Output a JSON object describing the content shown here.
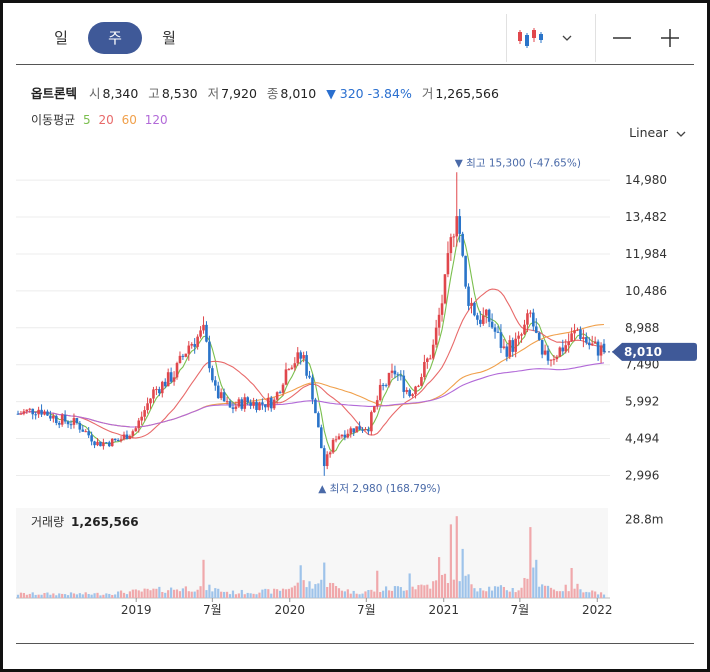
{
  "period_tabs": [
    {
      "label": "일"
    },
    {
      "label": "주"
    },
    {
      "label": "월"
    }
  ],
  "active_period": 1,
  "toolbar": {
    "chart_type_icon": "candlestick-icon",
    "dropdown_icon": "chevron-down-icon",
    "zoom_out_icon": "minus-icon",
    "zoom_in_icon": "plus-icon"
  },
  "ohlc": {
    "name": "옵트론텍",
    "open_label": "시",
    "open": "8,340",
    "high_label": "고",
    "high": "8,530",
    "low_label": "저",
    "low": "7,920",
    "close_label": "종",
    "close": "8,010",
    "change": "▼ 320 -3.84%",
    "volume_label": "거",
    "volume": "1,265,566"
  },
  "ma_legend": {
    "label": "이동평균",
    "periods": [
      "5",
      "20",
      "60",
      "120"
    ]
  },
  "scale": {
    "label": "Linear"
  },
  "colors": {
    "up": "#e0474c",
    "down": "#2a74c9",
    "ma5": "#7bbf4e",
    "ma20": "#e86a6a",
    "ma60": "#f0a04b",
    "ma120": "#b26ad8",
    "accent": "#3f5998",
    "vol_up": "#f0a8ab",
    "vol_down": "#9ec3ea"
  },
  "chart_data": {
    "type": "candlestick",
    "y_ticks": [
      "14,980",
      "13,482",
      "11,984",
      "10,486",
      "8,988",
      "7,490",
      "5,992",
      "4,494",
      "2,996"
    ],
    "y_tick_values": [
      14980,
      13482,
      11984,
      10486,
      8988,
      7490,
      5992,
      4494,
      2996
    ],
    "ylim": [
      2000,
      16000
    ],
    "x_ticks": [
      "2019",
      "7월",
      "2020",
      "7월",
      "2021",
      "7월",
      "2022"
    ],
    "x_tick_dates": [
      "2019-01-01",
      "2019-07-01",
      "2020-01-01",
      "2020-07-01",
      "2021-01-01",
      "2021-07-01",
      "2022-01-01"
    ],
    "x_range": [
      "2018-03-26",
      "2022-01-17"
    ],
    "current_price": "8,010",
    "current_value": 8010,
    "high_annotation": "▼ 최고 15,300 (-47.65%)",
    "high": {
      "value": 15300,
      "date": "2021-02-01"
    },
    "low_annotation": "▲ 최저 2,980 (168.79%)",
    "low": {
      "value": 2980,
      "date": "2020-03-23"
    },
    "volume_label": "거래량",
    "volume_value": "1,265,566",
    "volume_tick": "28.8m",
    "volume_tick_value": 28800000,
    "price_anchors": [
      [
        "2018-03-26",
        5500
      ],
      [
        "2018-05-14",
        5700
      ],
      [
        "2018-06-25",
        5300
      ],
      [
        "2018-08-13",
        5100
      ],
      [
        "2018-10-01",
        4300
      ],
      [
        "2018-11-19",
        4400
      ],
      [
        "2018-12-31",
        4900
      ],
      [
        "2019-02-11",
        6400
      ],
      [
        "2019-04-01",
        7100
      ],
      [
        "2019-05-06",
        8300
      ],
      [
        "2019-06-10",
        8800
      ],
      [
        "2019-07-08",
        6400
      ],
      [
        "2019-08-12",
        5700
      ],
      [
        "2019-09-16",
        6000
      ],
      [
        "2019-10-21",
        5900
      ],
      [
        "2019-11-25",
        6000
      ],
      [
        "2019-12-30",
        7600
      ],
      [
        "2020-02-03",
        7800
      ],
      [
        "2020-02-24",
        6300
      ],
      [
        "2020-03-23",
        3400
      ],
      [
        "2020-04-20",
        4600
      ],
      [
        "2020-06-01",
        4900
      ],
      [
        "2020-07-06",
        5000
      ],
      [
        "2020-08-03",
        6400
      ],
      [
        "2020-09-07",
        7200
      ],
      [
        "2020-10-12",
        6300
      ],
      [
        "2020-11-09",
        7100
      ],
      [
        "2020-12-07",
        8200
      ],
      [
        "2021-01-04",
        10700
      ],
      [
        "2021-02-01",
        14000
      ],
      [
        "2021-02-22",
        10500
      ],
      [
        "2021-03-22",
        9400
      ],
      [
        "2021-04-19",
        9300
      ],
      [
        "2021-05-24",
        8100
      ],
      [
        "2021-06-28",
        8400
      ],
      [
        "2021-07-26",
        9500
      ],
      [
        "2021-08-23",
        7700
      ],
      [
        "2021-09-20",
        7900
      ],
      [
        "2021-10-18",
        8300
      ],
      [
        "2021-11-15",
        8900
      ],
      [
        "2021-12-13",
        8300
      ],
      [
        "2022-01-17",
        8010
      ]
    ],
    "volume_anchors": [
      [
        "2018-03-26",
        1.5
      ],
      [
        "2018-10-01",
        1.5
      ],
      [
        "2019-03-04",
        3.0
      ],
      [
        "2019-06-10",
        4.0
      ],
      [
        "2019-08-12",
        2.0
      ],
      [
        "2019-11-25",
        2.5
      ],
      [
        "2020-01-27",
        5.0
      ],
      [
        "2020-03-23",
        5.5
      ],
      [
        "2020-06-01",
        2.0
      ],
      [
        "2020-09-07",
        3.5
      ],
      [
        "2020-12-07",
        5.0
      ],
      [
        "2021-01-04",
        8.0
      ],
      [
        "2021-02-01",
        10.0
      ],
      [
        "2021-03-22",
        4.0
      ],
      [
        "2021-06-28",
        3.0
      ],
      [
        "2021-07-26",
        9.0
      ],
      [
        "2021-09-20",
        3.0
      ],
      [
        "2021-11-15",
        4.0
      ],
      [
        "2022-01-17",
        1.3
      ]
    ],
    "volume_spikes": [
      [
        "2019-06-10",
        14
      ],
      [
        "2020-01-27",
        12
      ],
      [
        "2020-03-23",
        13
      ],
      [
        "2020-07-27",
        10
      ],
      [
        "2020-10-12",
        9
      ],
      [
        "2020-12-21",
        15
      ],
      [
        "2021-01-18",
        27
      ],
      [
        "2021-02-01",
        30
      ],
      [
        "2021-02-15",
        18
      ],
      [
        "2021-07-26",
        26
      ],
      [
        "2021-08-09",
        14
      ],
      [
        "2021-11-01",
        11
      ]
    ],
    "volume_max": 33000000,
    "ma_periods": [
      5,
      20,
      60,
      120
    ],
    "grid": true
  }
}
